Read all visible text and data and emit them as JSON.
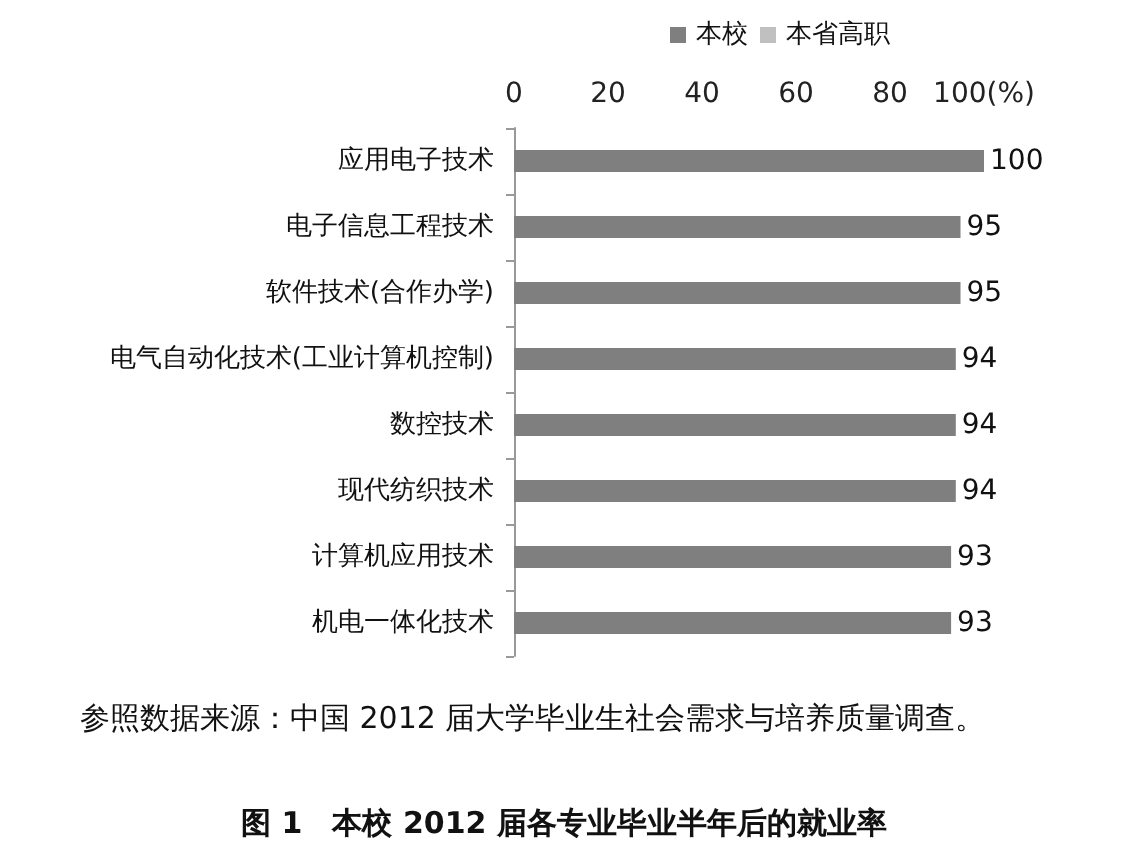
{
  "chart_data": {
    "type": "bar",
    "orientation": "horizontal",
    "title": "图 1　本校 2012 届各专业毕业半年后的就业率",
    "annotations": [
      "参照数据来源：中国 2012 届大学毕业生社会需求与培养质量调查。"
    ],
    "categories": [
      "应用电子技术",
      "电子信息工程技术",
      "软件技术(合作办学)",
      "电气自动化技术(工业计算机控制)",
      "数控技术",
      "现代纺织技术",
      "计算机应用技术",
      "机电一体化技术"
    ],
    "series": [
      {
        "name": "本校",
        "color": "#7f7f7f",
        "values": [
          100,
          95,
          95,
          94,
          94,
          94,
          93,
          93
        ]
      },
      {
        "name": "本省高职",
        "color": "#c0c0c0",
        "values": [
          null,
          null,
          null,
          null,
          null,
          null,
          null,
          null
        ]
      }
    ],
    "xlim": [
      0,
      100
    ],
    "xticks": [
      0,
      20,
      40,
      60,
      80,
      {
        "value": 100,
        "label": "100(%)"
      }
    ],
    "data_labels": true,
    "grid": false,
    "legend": "top"
  }
}
